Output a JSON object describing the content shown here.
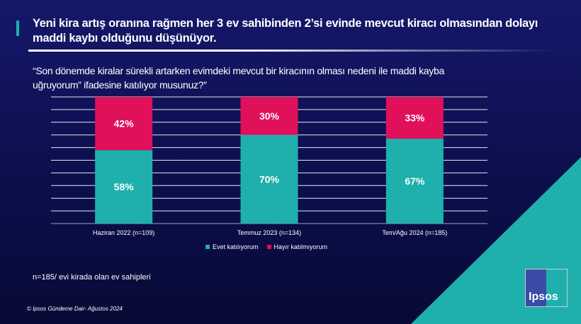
{
  "title": "Yeni kira artış oranına rağmen her 3 ev sahibinden 2’si evinde mevcut kiracı olmasından dolayı maddi kaybı olduğunu düşünüyor.",
  "question": "“Son dönemde kiralar sürekli artarken evimdeki mevcut bir kiracının olması nedeni ile maddi kayba uğruyorum” ifadesine katılıyor musunuz?”",
  "chart_data": {
    "type": "bar",
    "stacked": true,
    "categories": [
      "Haziran 2022 (n=109)",
      "Temmuz 2023 (n=134)",
      "Tem/Ağu 2024 (n=185)"
    ],
    "series": [
      {
        "name": "Evet katılıyorum",
        "values": [
          58,
          70,
          67
        ],
        "color": "#1fb0ad",
        "labels": [
          "58%",
          "70%",
          "67%"
        ]
      },
      {
        "name": "Hayır katılmıyorum",
        "values": [
          42,
          30,
          33
        ],
        "color": "#e0105a",
        "labels": [
          "42%",
          "30%",
          "33%"
        ]
      }
    ],
    "ylim": [
      0,
      100
    ],
    "grid": true,
    "legend": "bottom"
  },
  "note": "n=185/ evi kirada olan ev sahipleri",
  "copyright": "© Ipsos Gündeme Dair- Ağustos 2024",
  "logo": "Ipsos"
}
